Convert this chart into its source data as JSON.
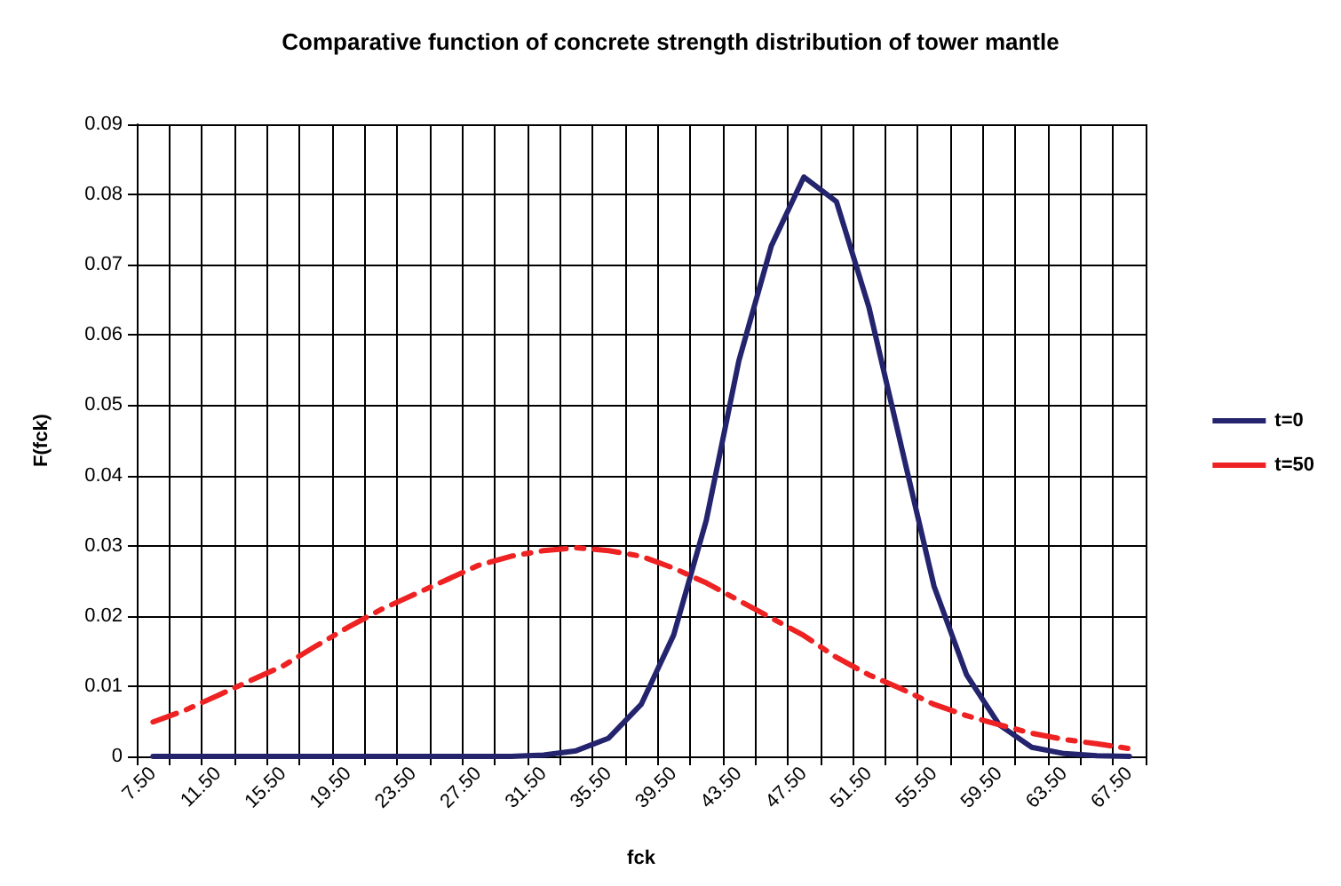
{
  "chart_data": {
    "type": "line",
    "title": "Comparative function of concrete strength distribution of tower mantle",
    "xlabel": "fck",
    "ylabel": "F(fck)",
    "categories": [
      "7.50",
      null,
      "11.50",
      null,
      "15.50",
      null,
      "19.50",
      null,
      "23.50",
      null,
      "27.50",
      null,
      "31.50",
      null,
      "35.50",
      null,
      "39.50",
      null,
      "43.50",
      null,
      "47.50",
      null,
      "51.50",
      null,
      "55.50",
      null,
      "59.50",
      null,
      "63.50",
      null,
      "67.50"
    ],
    "series": [
      {
        "name": "t=0",
        "color": "#24246e",
        "line_style": "solid",
        "values": [
          0,
          0,
          0,
          0,
          0,
          0,
          0,
          0,
          0,
          0,
          0,
          0,
          0.0002,
          0.0008,
          0.0026,
          0.0074,
          0.0173,
          0.0336,
          0.0563,
          0.0727,
          0.0825,
          0.079,
          0.0639,
          0.044,
          0.0242,
          0.0116,
          0.0045,
          0.0013,
          0.0004,
          0.0001,
          0
        ]
      },
      {
        "name": "t=50",
        "color": "#ee2222",
        "line_style": "dashed",
        "values": [
          0.0049,
          0.0066,
          0.0087,
          0.0108,
          0.0129,
          0.0157,
          0.0184,
          0.0209,
          0.023,
          0.0251,
          0.0272,
          0.0285,
          0.0293,
          0.0297,
          0.0293,
          0.0285,
          0.0268,
          0.0247,
          0.0222,
          0.0197,
          0.0172,
          0.0141,
          0.0116,
          0.0096,
          0.0074,
          0.0058,
          0.0045,
          0.0033,
          0.0024,
          0.0018,
          0.0011
        ]
      }
    ],
    "ylim": [
      0,
      0.09
    ],
    "yticks": [
      0,
      0.01,
      0.02,
      0.03,
      0.04,
      0.05,
      0.06,
      0.07,
      0.08,
      0.09
    ],
    "grid": true,
    "legend": "right",
    "marker": "none"
  }
}
